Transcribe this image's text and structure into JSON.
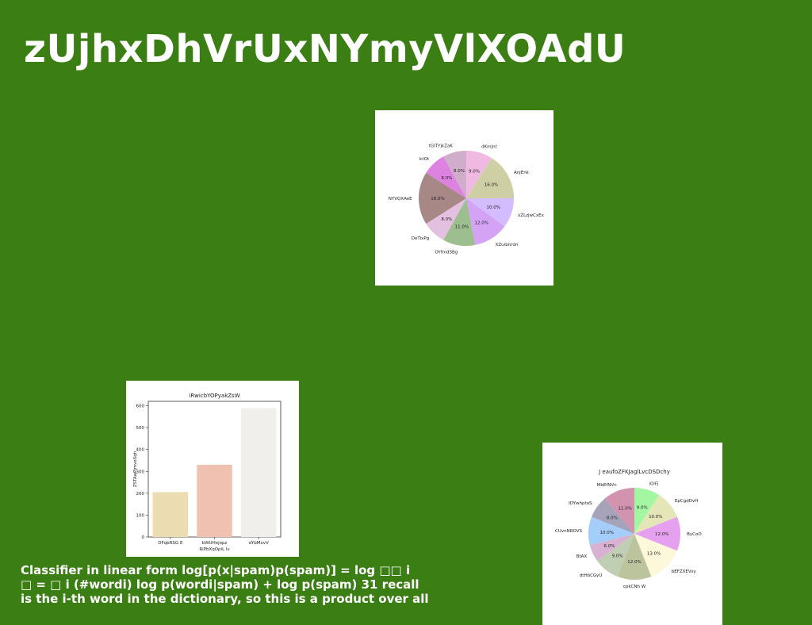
{
  "slide": {
    "title": "zUjhxDhVrUxNYmyVlXOAdU",
    "text_lines": [
      "Classifier in linear form log[p(x|spam)p(spam)] = log □□ i",
      "□ = □ i (#wordi) log p(wordi|spam) + log p(spam) 31 recall",
      "is the i-th word in the dictionary, so this is a product over all"
    ]
  },
  "chart_data": [
    {
      "type": "pie",
      "title": "",
      "labels": [
        "dKmJnt",
        "AnjEnk",
        "xZLzjwCxEx",
        "XZuibnrdn",
        "OYfmdSBg",
        "DeTixPg",
        "NYVQXAeE",
        "IcIOt",
        "tGITYjkZaK"
      ],
      "values": [
        9.0,
        16.0,
        10.0,
        12.0,
        11.0,
        8.0,
        18.0,
        8.0,
        8.0
      ],
      "colors": [
        "#efb9e2",
        "#cfcfa5",
        "#d3bcff",
        "#d4a3f5",
        "#9dbf90",
        "#e3bfe0",
        "#a88886",
        "#dd82e0",
        "#cfadcb"
      ]
    },
    {
      "type": "bar",
      "title": "iRwicbYOPyakZsW",
      "categories": [
        "DFqbRSG E",
        "bWUHejopz",
        "dYbMxvV"
      ],
      "values": [
        205,
        330,
        588
      ],
      "xlabel": "RiPbXqOpiL lv",
      "ylabel": "ZSTAwPjmvoSqh",
      "ylim": [
        0,
        620
      ],
      "yticks": [
        0,
        100,
        200,
        300,
        400,
        500,
        600
      ],
      "colors": [
        "#ecdcb1",
        "#f0c1b0",
        "#f1efec"
      ]
    },
    {
      "type": "pie",
      "title": "J eaufoZFKJaglLvcDSDchy",
      "labels": [
        "iOiFj",
        "EpCgdDvH",
        "ByCoO",
        "bEFZXEVsy",
        "cpkCNh W",
        "dtHbCGyU",
        "BtAX",
        "CUvnNROVS",
        "IDYwhptaS",
        "MbEfNVn"
      ],
      "values": [
        9.0,
        10.0,
        12.0,
        13.0,
        12.0,
        9.0,
        6.0,
        10.0,
        8.0,
        11.0
      ],
      "colors": [
        "#a3f7a3",
        "#e4e6b8",
        "#e6a0f0",
        "#fdf8d9",
        "#bcc49e",
        "#c0ceb4",
        "#d8b1d3",
        "#a4cdf9",
        "#a6a2ba",
        "#d393af"
      ]
    }
  ]
}
